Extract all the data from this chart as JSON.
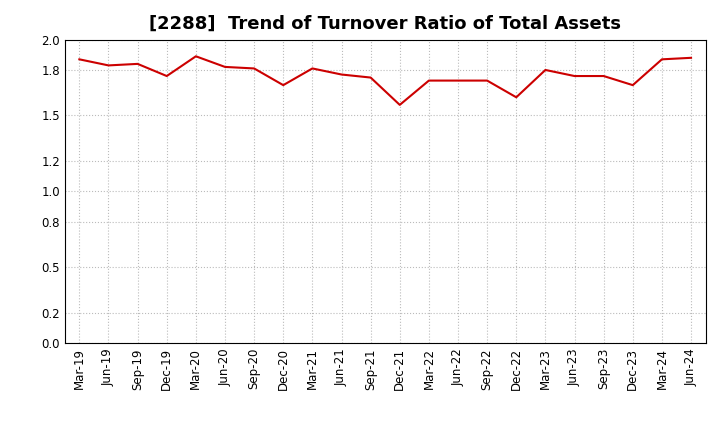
{
  "title": "[2288]  Trend of Turnover Ratio of Total Assets",
  "labels": [
    "Mar-19",
    "Jun-19",
    "Sep-19",
    "Dec-19",
    "Mar-20",
    "Jun-20",
    "Sep-20",
    "Dec-20",
    "Mar-21",
    "Jun-21",
    "Sep-21",
    "Dec-21",
    "Mar-22",
    "Jun-22",
    "Sep-22",
    "Dec-22",
    "Mar-23",
    "Jun-23",
    "Sep-23",
    "Dec-23",
    "Mar-24",
    "Jun-24"
  ],
  "values": [
    1.87,
    1.83,
    1.84,
    1.76,
    1.89,
    1.82,
    1.81,
    1.7,
    1.81,
    1.77,
    1.75,
    1.57,
    1.73,
    1.73,
    1.73,
    1.62,
    1.8,
    1.76,
    1.76,
    1.7,
    1.87,
    1.88
  ],
  "line_color": "#cc0000",
  "line_width": 1.5,
  "ylim": [
    0.0,
    2.0
  ],
  "yticks": [
    0.0,
    0.2,
    0.5,
    0.8,
    1.0,
    1.2,
    1.5,
    1.8,
    2.0
  ],
  "background_color": "#ffffff",
  "grid_color": "#bbbbbb",
  "title_fontsize": 13,
  "tick_fontsize": 8.5
}
